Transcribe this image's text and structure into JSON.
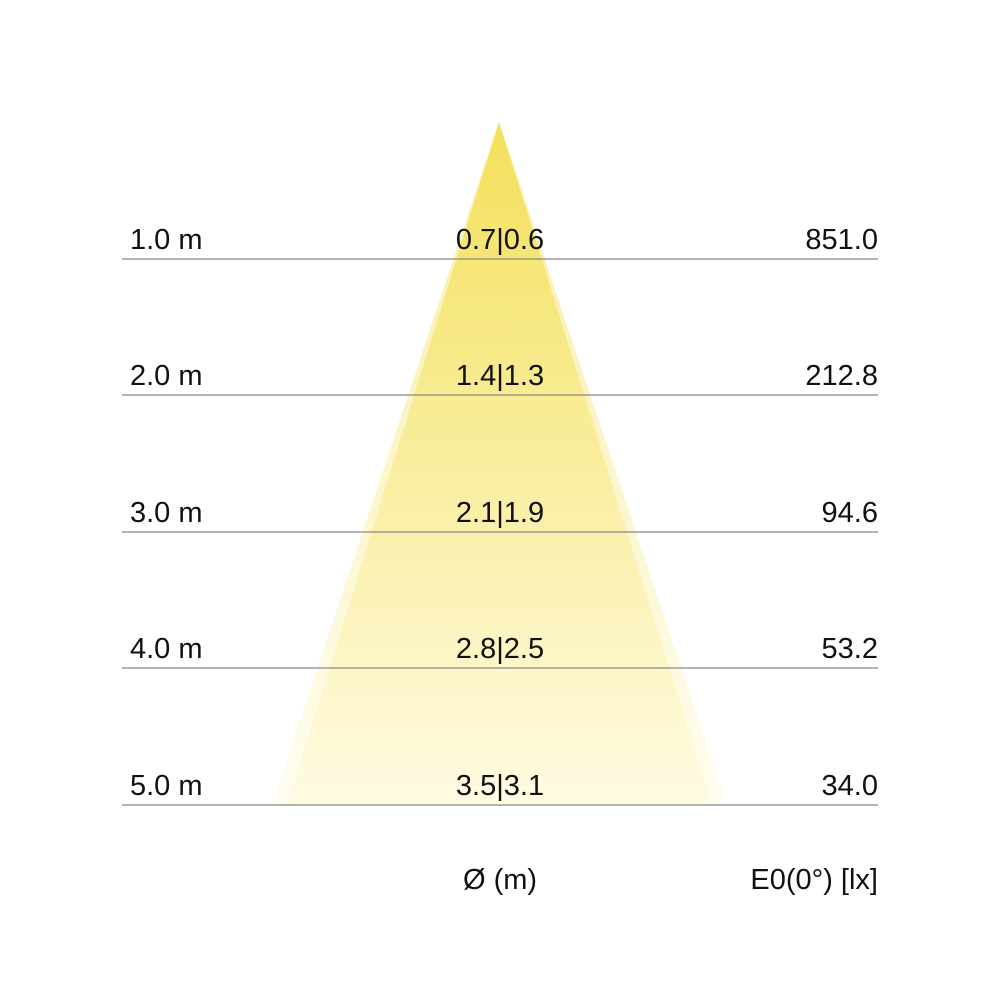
{
  "rows": [
    {
      "distance": "1.0 m",
      "diameter": "0.7|0.6",
      "illuminance": "851.0"
    },
    {
      "distance": "2.0 m",
      "diameter": "1.4|1.3",
      "illuminance": "212.8"
    },
    {
      "distance": "3.0 m",
      "diameter": "2.1|1.9",
      "illuminance": "94.6"
    },
    {
      "distance": "4.0 m",
      "diameter": "2.8|2.5",
      "illuminance": "53.2"
    },
    {
      "distance": "5.0 m",
      "diameter": "3.5|3.1",
      "illuminance": "34.0"
    }
  ],
  "footer": {
    "diameter_label": "Ø (m)",
    "illuminance_label": "E0(0°) [lx]"
  },
  "colors": {
    "cone_top": "#f3e05a",
    "cone_bottom": "#fffbe3",
    "line": "#888888"
  }
}
